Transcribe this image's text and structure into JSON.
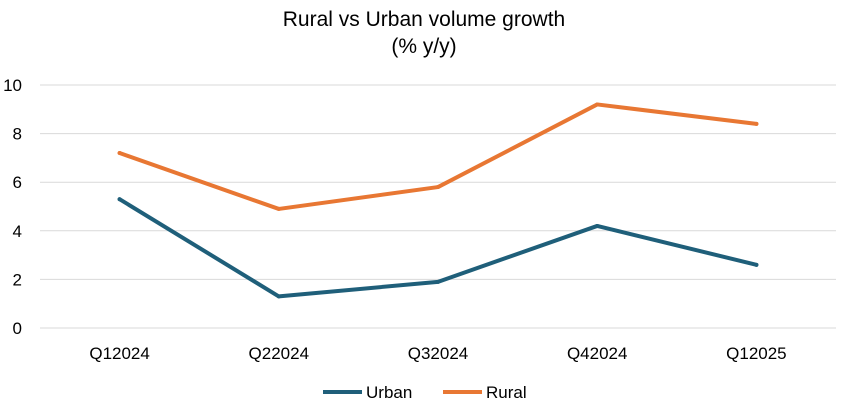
{
  "chart_data": {
    "type": "line",
    "title": "Rural vs Urban volume growth",
    "subtitle": "(% y/y)",
    "xlabel": "",
    "ylabel": "",
    "categories": [
      "Q12024",
      "Q22024",
      "Q32024",
      "Q42024",
      "Q12025"
    ],
    "ylim": [
      0,
      10
    ],
    "yticks": [
      "0",
      "2",
      "4",
      "6",
      "8",
      "10"
    ],
    "grid": true,
    "legend_position": "bottom",
    "series": [
      {
        "name": "Urban",
        "color": "#1f5f7a",
        "values": [
          5.3,
          1.3,
          1.9,
          4.2,
          2.6
        ]
      },
      {
        "name": "Rural",
        "color": "#e87733",
        "values": [
          7.2,
          4.9,
          5.8,
          9.2,
          8.4
        ]
      }
    ]
  }
}
